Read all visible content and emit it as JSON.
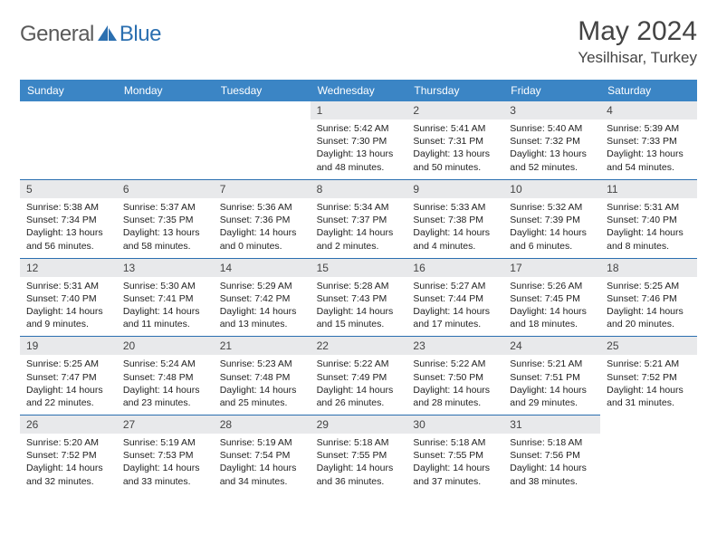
{
  "logo": {
    "general": "General",
    "blue": "Blue"
  },
  "title": "May 2024",
  "location": "Yesilhisar, Turkey",
  "colors": {
    "header_bg": "#3b85c5",
    "border": "#2b6fb0",
    "daynum_bg": "#e8e9eb",
    "logo_gray": "#5a5a5a",
    "logo_blue": "#2b6fb0"
  },
  "day_names": [
    "Sunday",
    "Monday",
    "Tuesday",
    "Wednesday",
    "Thursday",
    "Friday",
    "Saturday"
  ],
  "weeks": [
    [
      null,
      null,
      null,
      {
        "n": "1",
        "sr": "5:42 AM",
        "ss": "7:30 PM",
        "dl": "13 hours and 48 minutes."
      },
      {
        "n": "2",
        "sr": "5:41 AM",
        "ss": "7:31 PM",
        "dl": "13 hours and 50 minutes."
      },
      {
        "n": "3",
        "sr": "5:40 AM",
        "ss": "7:32 PM",
        "dl": "13 hours and 52 minutes."
      },
      {
        "n": "4",
        "sr": "5:39 AM",
        "ss": "7:33 PM",
        "dl": "13 hours and 54 minutes."
      }
    ],
    [
      {
        "n": "5",
        "sr": "5:38 AM",
        "ss": "7:34 PM",
        "dl": "13 hours and 56 minutes."
      },
      {
        "n": "6",
        "sr": "5:37 AM",
        "ss": "7:35 PM",
        "dl": "13 hours and 58 minutes."
      },
      {
        "n": "7",
        "sr": "5:36 AM",
        "ss": "7:36 PM",
        "dl": "14 hours and 0 minutes."
      },
      {
        "n": "8",
        "sr": "5:34 AM",
        "ss": "7:37 PM",
        "dl": "14 hours and 2 minutes."
      },
      {
        "n": "9",
        "sr": "5:33 AM",
        "ss": "7:38 PM",
        "dl": "14 hours and 4 minutes."
      },
      {
        "n": "10",
        "sr": "5:32 AM",
        "ss": "7:39 PM",
        "dl": "14 hours and 6 minutes."
      },
      {
        "n": "11",
        "sr": "5:31 AM",
        "ss": "7:40 PM",
        "dl": "14 hours and 8 minutes."
      }
    ],
    [
      {
        "n": "12",
        "sr": "5:31 AM",
        "ss": "7:40 PM",
        "dl": "14 hours and 9 minutes."
      },
      {
        "n": "13",
        "sr": "5:30 AM",
        "ss": "7:41 PM",
        "dl": "14 hours and 11 minutes."
      },
      {
        "n": "14",
        "sr": "5:29 AM",
        "ss": "7:42 PM",
        "dl": "14 hours and 13 minutes."
      },
      {
        "n": "15",
        "sr": "5:28 AM",
        "ss": "7:43 PM",
        "dl": "14 hours and 15 minutes."
      },
      {
        "n": "16",
        "sr": "5:27 AM",
        "ss": "7:44 PM",
        "dl": "14 hours and 17 minutes."
      },
      {
        "n": "17",
        "sr": "5:26 AM",
        "ss": "7:45 PM",
        "dl": "14 hours and 18 minutes."
      },
      {
        "n": "18",
        "sr": "5:25 AM",
        "ss": "7:46 PM",
        "dl": "14 hours and 20 minutes."
      }
    ],
    [
      {
        "n": "19",
        "sr": "5:25 AM",
        "ss": "7:47 PM",
        "dl": "14 hours and 22 minutes."
      },
      {
        "n": "20",
        "sr": "5:24 AM",
        "ss": "7:48 PM",
        "dl": "14 hours and 23 minutes."
      },
      {
        "n": "21",
        "sr": "5:23 AM",
        "ss": "7:48 PM",
        "dl": "14 hours and 25 minutes."
      },
      {
        "n": "22",
        "sr": "5:22 AM",
        "ss": "7:49 PM",
        "dl": "14 hours and 26 minutes."
      },
      {
        "n": "23",
        "sr": "5:22 AM",
        "ss": "7:50 PM",
        "dl": "14 hours and 28 minutes."
      },
      {
        "n": "24",
        "sr": "5:21 AM",
        "ss": "7:51 PM",
        "dl": "14 hours and 29 minutes."
      },
      {
        "n": "25",
        "sr": "5:21 AM",
        "ss": "7:52 PM",
        "dl": "14 hours and 31 minutes."
      }
    ],
    [
      {
        "n": "26",
        "sr": "5:20 AM",
        "ss": "7:52 PM",
        "dl": "14 hours and 32 minutes."
      },
      {
        "n": "27",
        "sr": "5:19 AM",
        "ss": "7:53 PM",
        "dl": "14 hours and 33 minutes."
      },
      {
        "n": "28",
        "sr": "5:19 AM",
        "ss": "7:54 PM",
        "dl": "14 hours and 34 minutes."
      },
      {
        "n": "29",
        "sr": "5:18 AM",
        "ss": "7:55 PM",
        "dl": "14 hours and 36 minutes."
      },
      {
        "n": "30",
        "sr": "5:18 AM",
        "ss": "7:55 PM",
        "dl": "14 hours and 37 minutes."
      },
      {
        "n": "31",
        "sr": "5:18 AM",
        "ss": "7:56 PM",
        "dl": "14 hours and 38 minutes."
      },
      null
    ]
  ],
  "labels": {
    "sunrise": "Sunrise:",
    "sunset": "Sunset:",
    "daylight": "Daylight:"
  }
}
